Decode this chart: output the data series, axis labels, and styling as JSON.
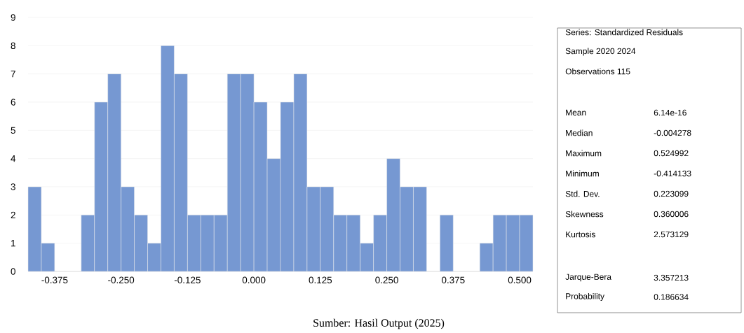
{
  "chart_data": {
    "type": "histogram",
    "bins": [
      -0.425,
      -0.4,
      -0.375,
      -0.35,
      -0.325,
      -0.3,
      -0.275,
      -0.25,
      -0.225,
      -0.2,
      -0.175,
      -0.15,
      -0.125,
      -0.1,
      -0.075,
      -0.05,
      -0.025,
      0.0,
      0.025,
      0.05,
      0.075,
      0.1,
      0.125,
      0.15,
      0.175,
      0.2,
      0.225,
      0.25,
      0.275,
      0.3,
      0.325,
      0.35,
      0.375,
      0.4,
      0.425,
      0.45,
      0.475,
      0.5,
      0.525
    ],
    "values": [
      3,
      1,
      0,
      0,
      2,
      6,
      7,
      3,
      2,
      1,
      8,
      7,
      2,
      2,
      2,
      7,
      7,
      6,
      4,
      6,
      7,
      3,
      3,
      2,
      2,
      1,
      2,
      4,
      3,
      3,
      0,
      2,
      0,
      0,
      1,
      2,
      2,
      2
    ],
    "color": "#7698d2",
    "xlim": [
      -0.425,
      0.525
    ],
    "xticks": [
      {
        "value": -0.375,
        "label": "-0.375"
      },
      {
        "value": -0.25,
        "label": "-0.250"
      },
      {
        "value": -0.125,
        "label": "-0.125"
      },
      {
        "value": 0.0,
        "label": "0.000"
      },
      {
        "value": 0.125,
        "label": "0.125"
      },
      {
        "value": 0.25,
        "label": "0.250"
      },
      {
        "value": 0.375,
        "label": "0.375"
      },
      {
        "value": 0.5,
        "label": "0.500"
      }
    ],
    "ylim": [
      0,
      9
    ],
    "yticks": [
      0,
      1,
      2,
      3,
      4,
      5,
      6,
      7,
      8,
      9
    ],
    "grid": "y",
    "annotations": [
      "Series: Standardized Residuals",
      "Sample 2020 2024",
      "Observations 115",
      "Mean",
      "6.14e-16",
      "Median",
      "-0.004278",
      "Maximum",
      "0.524992",
      "Minimum",
      "-0.414133",
      "Std. Dev.",
      "0.223099",
      "Skewness",
      "0.360006",
      "Kurtosis",
      "2.573129",
      "Jarque-Bera",
      "3.357213",
      "Probability",
      "0.186634",
      "Sumber: Hasil Output (2025)"
    ]
  }
}
